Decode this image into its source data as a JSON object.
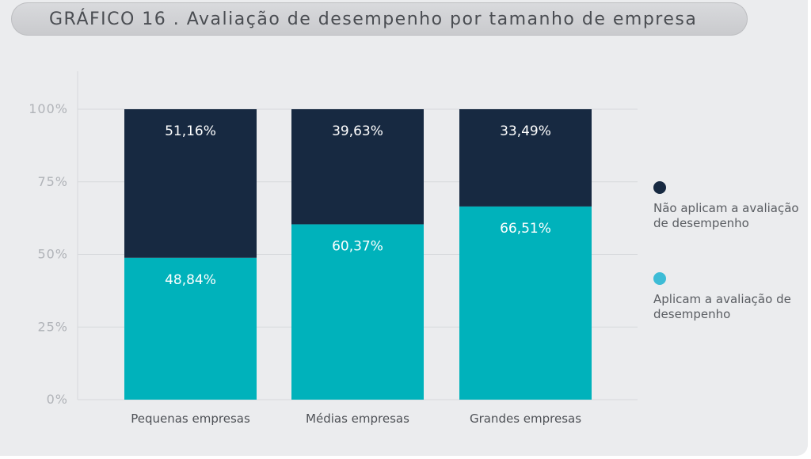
{
  "header": {
    "title": "GRÁFICO 16 . Avaliação de desempenho por tamanho de empresa"
  },
  "colors": {
    "background": "#ebecee",
    "dark_navy": "#172941",
    "teal": "#00b2bb",
    "legend_light_blue": "#3dbcd6",
    "axis_text": "#b0b3b8",
    "gridline": "#d7d9dc"
  },
  "chart_data": {
    "type": "bar",
    "stacked": true,
    "categories": [
      "Pequenas empresas",
      "Médias empresas",
      "Grandes empresas"
    ],
    "series": [
      {
        "name": "Aplicam a avaliação de desempenho",
        "values": [
          48.84,
          60.37,
          66.51
        ],
        "labels": [
          "48,84%",
          "60,37%",
          "66,51%"
        ]
      },
      {
        "name": "Não aplicam a avaliação de desempenho",
        "values": [
          51.16,
          39.63,
          33.49
        ],
        "labels": [
          "51,16%",
          "39,63%",
          "33,49%"
        ]
      }
    ],
    "yticks": [
      0,
      25,
      50,
      75,
      100
    ],
    "ytick_labels": [
      "0%",
      "25%",
      "50%",
      "75%",
      "100%"
    ],
    "ylim": [
      0,
      100
    ],
    "grid": true,
    "legend_position": "right"
  },
  "legend": {
    "items": [
      {
        "label": "Não aplicam a avaliação de desempenho"
      },
      {
        "label": "Aplicam a avaliação de desempenho"
      }
    ]
  }
}
